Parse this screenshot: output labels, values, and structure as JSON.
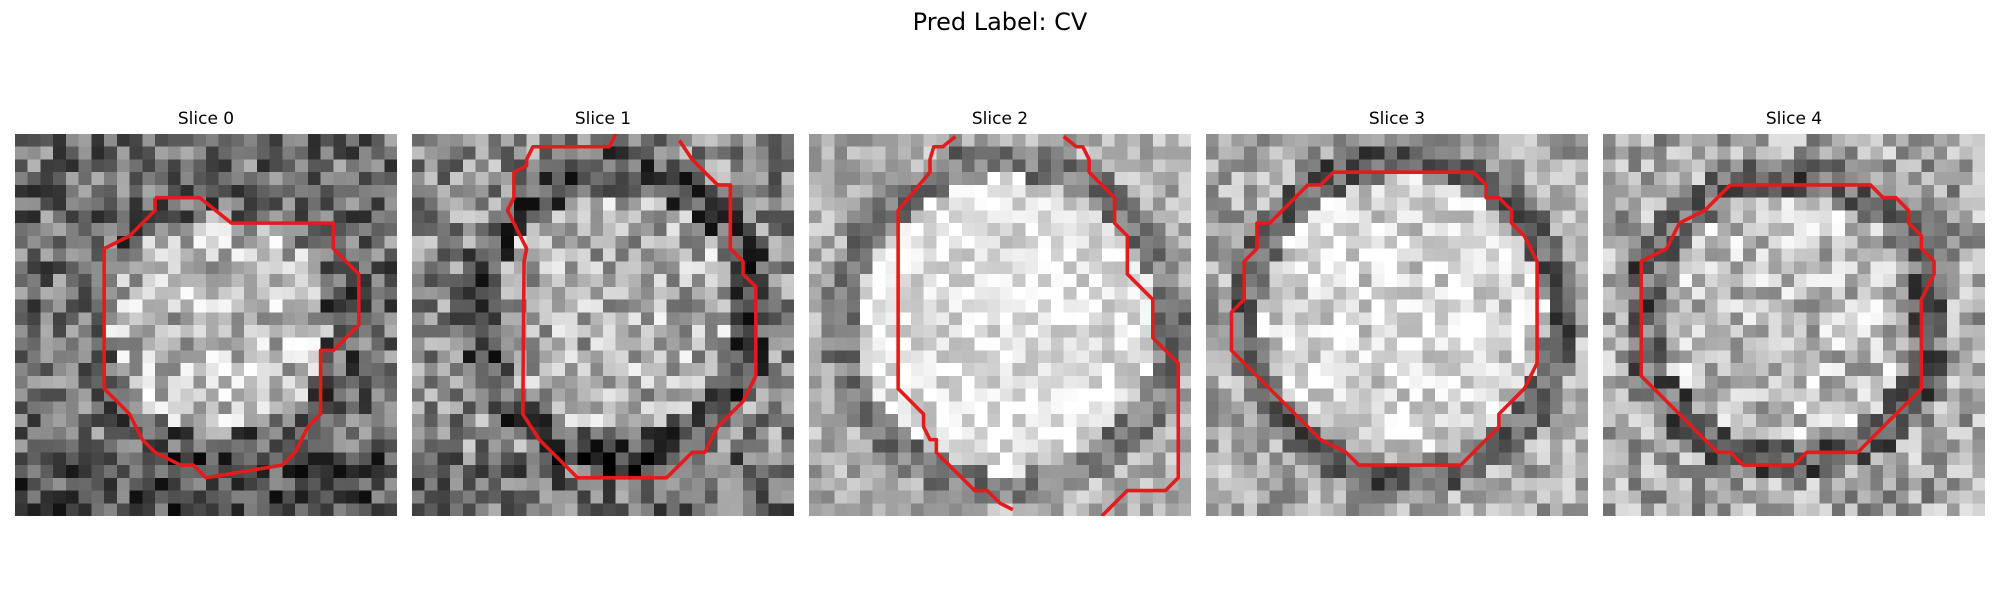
{
  "figure": {
    "suptitle": "Pred Label: CV"
  },
  "panels": [
    {
      "title": "Slice 0"
    },
    {
      "title": "Slice 1"
    },
    {
      "title": "Slice 2"
    },
    {
      "title": "Slice 3"
    },
    {
      "title": "Slice 4"
    }
  ],
  "colors": {
    "contour": "#e41a1c",
    "colormap": "gray"
  }
}
